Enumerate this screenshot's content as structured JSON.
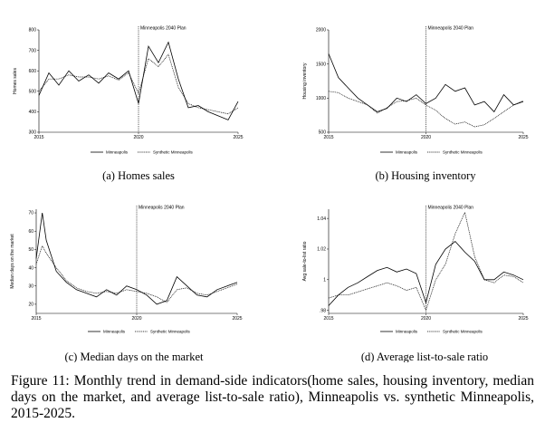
{
  "figure": {
    "caption": "Figure 11: Monthly trend in demand-side indicators(home sales, housing inventory, median days on the market, and average list-to-sale ratio), Minneapolis vs. synthetic Minneapolis, 2015-2025.",
    "intervention_label": "Minneapolis 2040 Plan",
    "legend": [
      "Minneapolis",
      "Synthetic Minneapolis"
    ],
    "colors": {
      "line": "#000000",
      "axis": "#000000"
    }
  },
  "chart_data": [
    {
      "type": "line",
      "subtitle": "(a) Homes sales",
      "ylabel": "Homes sales",
      "xticks": [
        "2015",
        "2020",
        "2025"
      ],
      "yticks": [
        "300",
        "400",
        "500",
        "600",
        "700",
        "800"
      ],
      "xlim": [
        2015,
        2025
      ],
      "ylim": [
        300,
        800
      ],
      "intervention_x": 2020,
      "x": [
        2015,
        2015.5,
        2016,
        2016.5,
        2017,
        2017.5,
        2018,
        2018.5,
        2019,
        2019.5,
        2020,
        2020.5,
        2021,
        2021.5,
        2022,
        2022.5,
        2023,
        2023.5,
        2024,
        2024.5,
        2025
      ],
      "series": [
        {
          "name": "Minneapolis",
          "style": "solid",
          "values": [
            480,
            590,
            530,
            600,
            550,
            580,
            540,
            590,
            560,
            600,
            440,
            720,
            640,
            740,
            560,
            420,
            430,
            400,
            380,
            360,
            450
          ]
        },
        {
          "name": "Synthetic Minneapolis",
          "style": "dotted",
          "values": [
            500,
            560,
            560,
            580,
            570,
            570,
            560,
            575,
            555,
            590,
            490,
            660,
            620,
            680,
            520,
            440,
            420,
            410,
            400,
            390,
            420
          ]
        }
      ]
    },
    {
      "type": "line",
      "subtitle": "(b) Housing inventory",
      "ylabel": "Housing inventory",
      "xticks": [
        "2015",
        "2020",
        "2025"
      ],
      "yticks": [
        "500",
        "1000",
        "1500",
        "2000"
      ],
      "xlim": [
        2015,
        2025
      ],
      "ylim": [
        500,
        2000
      ],
      "intervention_x": 2020,
      "x": [
        2015,
        2015.5,
        2016,
        2016.5,
        2017,
        2017.5,
        2018,
        2018.5,
        2019,
        2019.5,
        2020,
        2020.5,
        2021,
        2021.5,
        2022,
        2022.5,
        2023,
        2023.5,
        2024,
        2024.5,
        2025
      ],
      "series": [
        {
          "name": "Minneapolis",
          "style": "solid",
          "values": [
            1650,
            1300,
            1150,
            1000,
            900,
            800,
            850,
            1000,
            950,
            1050,
            920,
            1000,
            1200,
            1100,
            1150,
            900,
            950,
            800,
            1050,
            900,
            950
          ]
        },
        {
          "name": "Synthetic Minneapolis",
          "style": "dotted",
          "values": [
            1100,
            1080,
            1000,
            950,
            900,
            780,
            860,
            950,
            960,
            1000,
            900,
            820,
            700,
            620,
            650,
            580,
            610,
            700,
            800,
            900,
            960
          ]
        }
      ]
    },
    {
      "type": "line",
      "subtitle": "(c) Median days on the market",
      "ylabel": "Median days on the market",
      "xticks": [
        "2015",
        "2020",
        "2025"
      ],
      "yticks": [
        "20",
        "30",
        "40",
        "50",
        "60",
        "70"
      ],
      "xlim": [
        2015,
        2025
      ],
      "ylim": [
        15,
        72
      ],
      "intervention_x": 2020,
      "x": [
        2015,
        2015.3,
        2015.5,
        2016,
        2016.5,
        2017,
        2017.5,
        2018,
        2018.5,
        2019,
        2019.5,
        2020,
        2020.5,
        2021,
        2021.5,
        2022,
        2022.5,
        2023,
        2023.5,
        2024,
        2024.5,
        2025
      ],
      "series": [
        {
          "name": "Minneapolis",
          "style": "solid",
          "values": [
            45,
            70,
            55,
            38,
            32,
            28,
            26,
            24,
            28,
            25,
            30,
            28,
            25,
            20,
            22,
            35,
            30,
            25,
            24,
            28,
            30,
            32
          ]
        },
        {
          "name": "Synthetic Minneapolis",
          "style": "dotted",
          "values": [
            42,
            52,
            48,
            40,
            33,
            29,
            27,
            26,
            27,
            26,
            28,
            27,
            26,
            24,
            21,
            28,
            29,
            26,
            25,
            27,
            29,
            31
          ]
        }
      ]
    },
    {
      "type": "line",
      "subtitle": "(d) Average list-to-sale ratio",
      "ylabel": "Avg sale-to-list ratio",
      "xticks": [
        "2015",
        "2020",
        "2025"
      ],
      "yticks": [
        ".98",
        "1",
        "1.02",
        "1.04"
      ],
      "xlim": [
        2015,
        2025
      ],
      "ylim": [
        0.978,
        1.046
      ],
      "intervention_x": 2020,
      "x": [
        2015,
        2015.5,
        2016,
        2016.5,
        2017,
        2017.5,
        2018,
        2018.5,
        2019,
        2019.5,
        2020,
        2020.5,
        2021,
        2021.5,
        2022,
        2022.5,
        2023,
        2023.5,
        2024,
        2024.5,
        2025
      ],
      "series": [
        {
          "name": "Minneapolis",
          "style": "solid",
          "values": [
            0.983,
            0.99,
            0.995,
            0.998,
            1.002,
            1.006,
            1.008,
            1.005,
            1.007,
            1.004,
            0.985,
            1.01,
            1.02,
            1.025,
            1.018,
            1.012,
            1.0,
            1.0,
            1.005,
            1.003,
            1.0
          ]
        },
        {
          "name": "Synthetic Minneapolis",
          "style": "dotted",
          "values": [
            0.988,
            0.99,
            0.99,
            0.992,
            0.994,
            0.996,
            0.998,
            0.996,
            0.993,
            0.995,
            0.98,
            1.0,
            1.01,
            1.03,
            1.044,
            1.015,
            1.0,
            0.998,
            1.003,
            1.002,
            0.998
          ]
        }
      ]
    }
  ]
}
